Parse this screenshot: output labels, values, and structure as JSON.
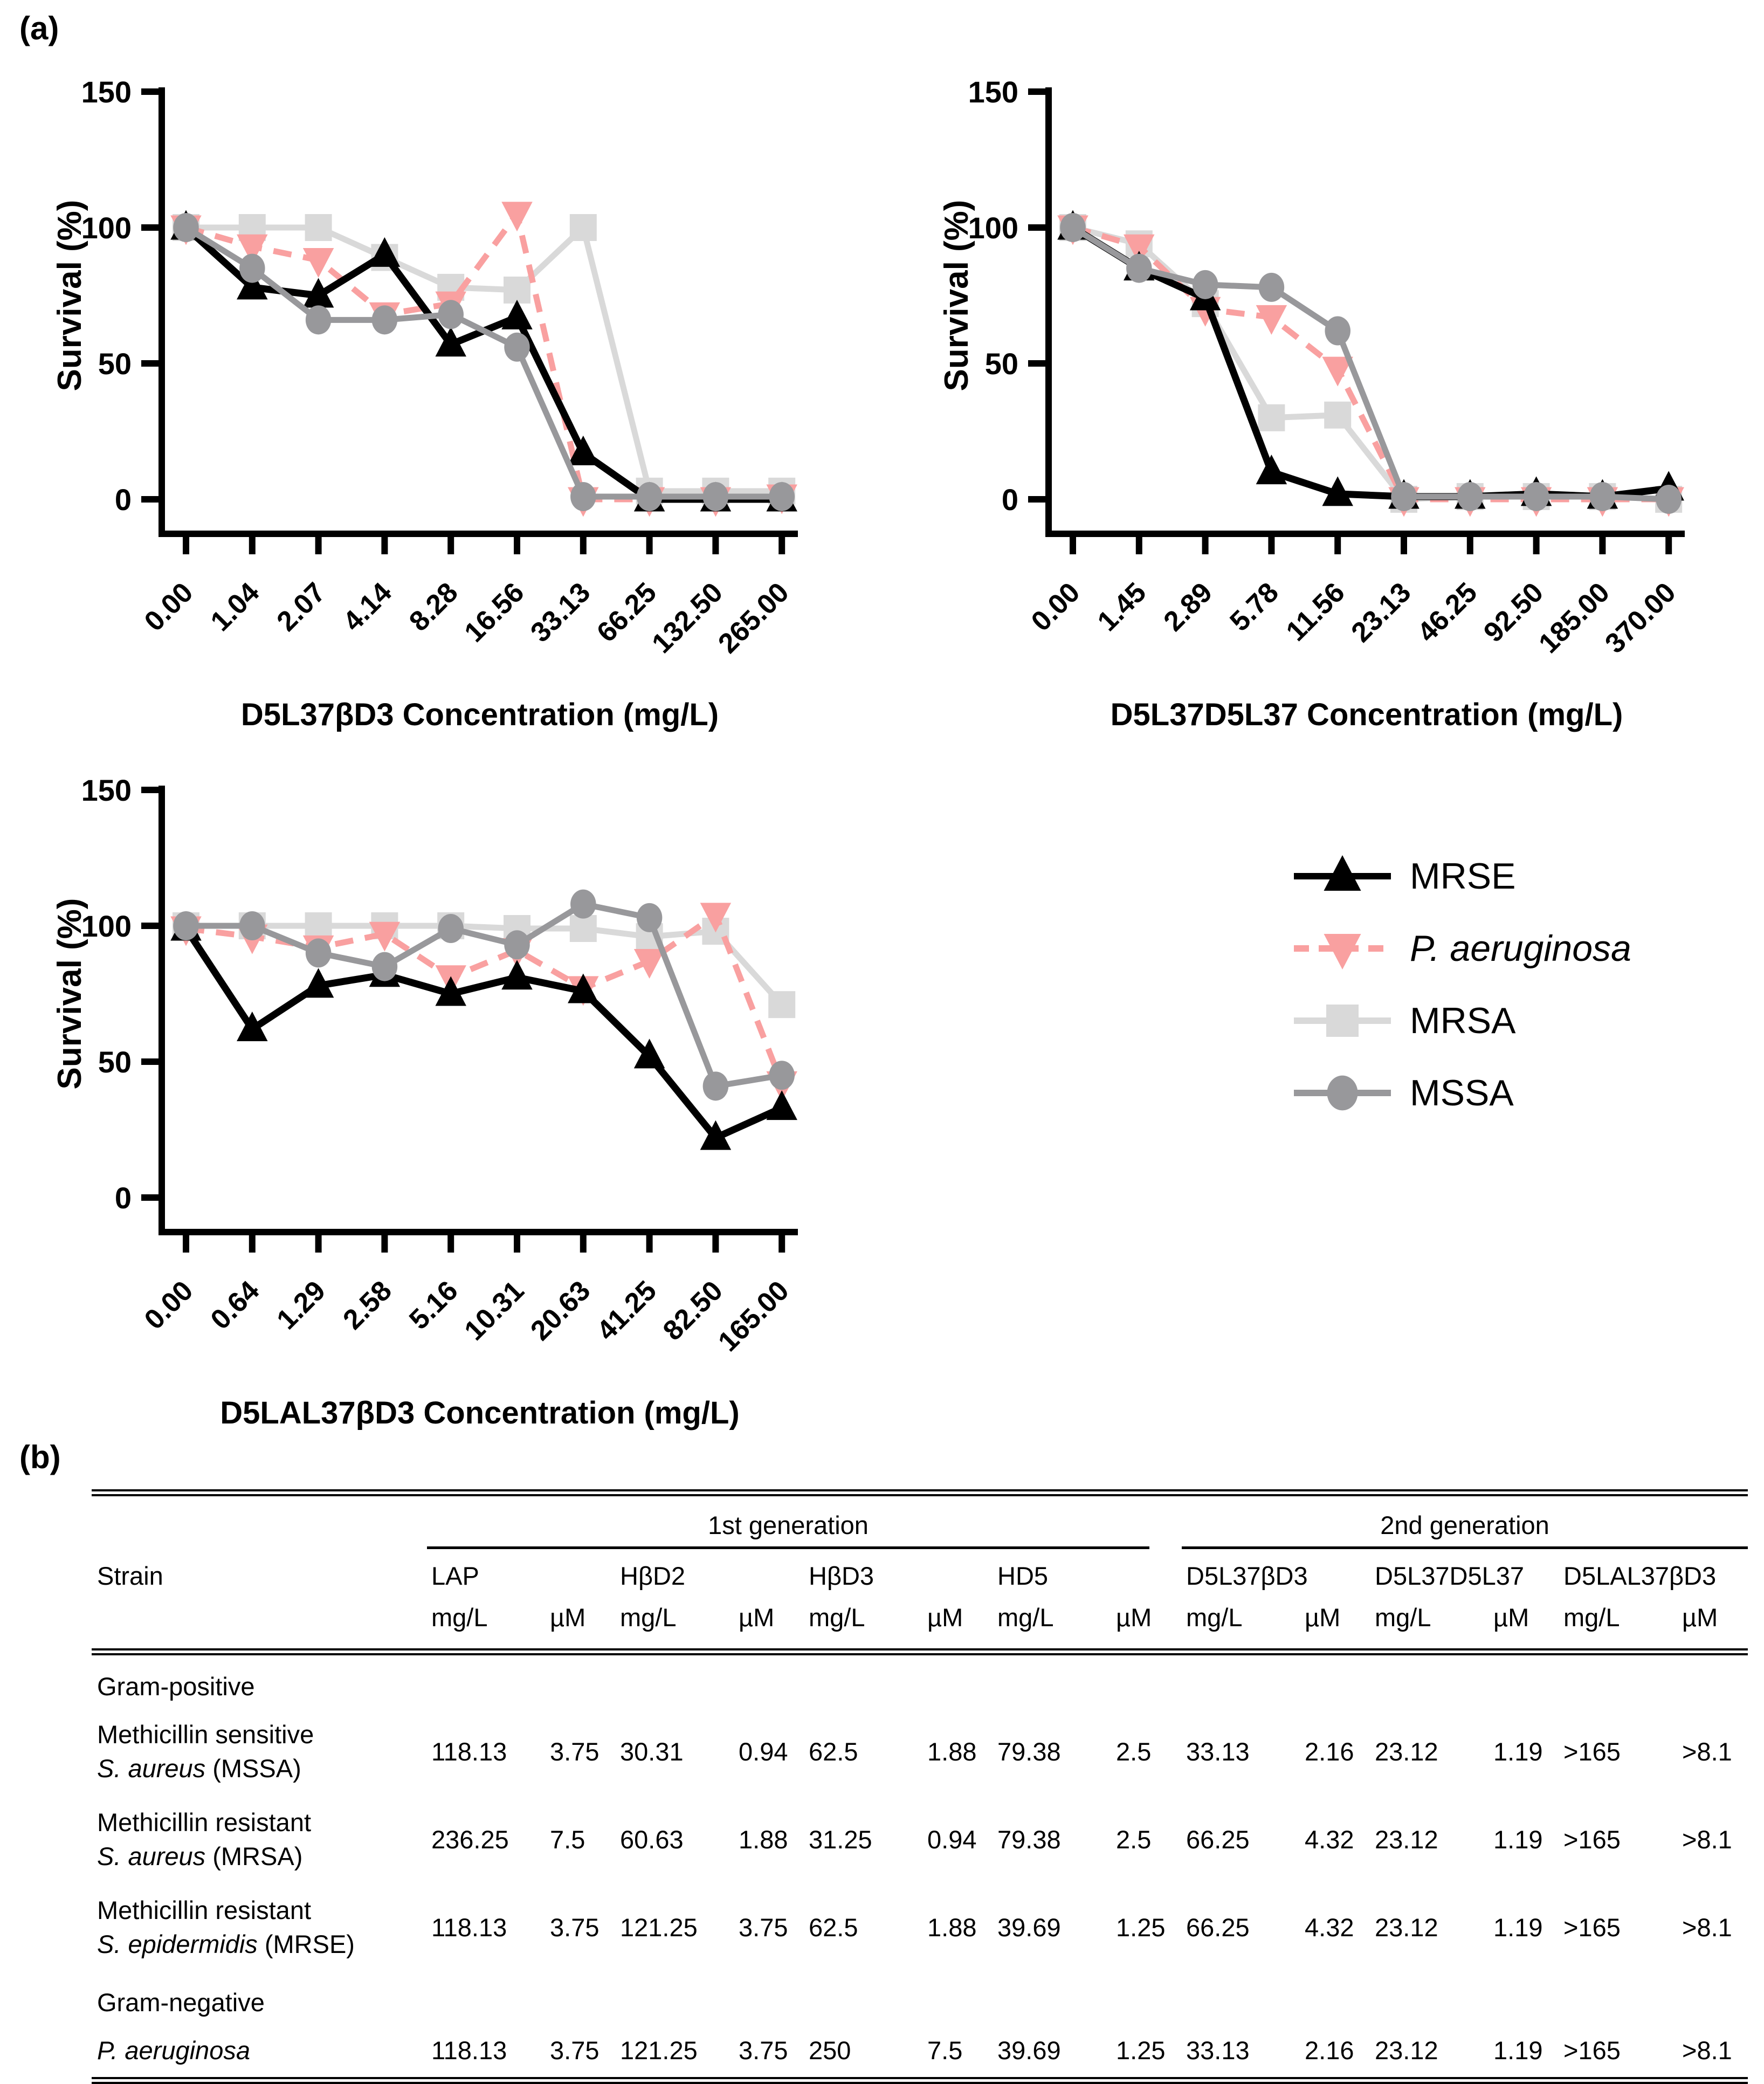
{
  "panel_a_label": "(a)",
  "panel_b_label": "(b)",
  "series_styles": {
    "MRSE": {
      "color": "#000000",
      "marker": "triangle-up",
      "dashed": false
    },
    "P. aeruginosa": {
      "color": "#F9A0A0",
      "marker": "triangle-down",
      "dashed": true
    },
    "MRSA": {
      "color": "#D9D9D9",
      "marker": "square",
      "dashed": false
    },
    "MSSA": {
      "color": "#98989B",
      "marker": "circle",
      "dashed": false
    }
  },
  "legend": {
    "position": "middle-right",
    "items": [
      {
        "label": "MRSE",
        "style": "MRSE",
        "italic": false
      },
      {
        "label": "P. aeruginosa",
        "style": "P. aeruginosa",
        "italic": true
      },
      {
        "label": "MRSA",
        "style": "MRSA",
        "italic": false
      },
      {
        "label": "MSSA",
        "style": "MSSA",
        "italic": false
      }
    ]
  },
  "chart_data": [
    {
      "type": "line",
      "xlabel": "D5L37βD3 Concentration (mg/L)",
      "ylabel": "Survival (%)",
      "yticks": [
        0,
        50,
        100,
        150
      ],
      "ylim": [
        0,
        150
      ],
      "grid": false,
      "categories": [
        "0.00",
        "1.04",
        "2.07",
        "4.14",
        "8.28",
        "16.56",
        "33.13",
        "66.25",
        "132.50",
        "265.00"
      ],
      "series": [
        {
          "name": "MRSE",
          "values": [
            100,
            78,
            75,
            90,
            57,
            67,
            17,
            0,
            0,
            0
          ]
        },
        {
          "name": "P. aeruginosa",
          "values": [
            100,
            93,
            88,
            68,
            72,
            105,
            0,
            0,
            0,
            1
          ]
        },
        {
          "name": "MRSA",
          "values": [
            100,
            100,
            100,
            89,
            78,
            77,
            100,
            3,
            3,
            3
          ]
        },
        {
          "name": "MSSA",
          "values": [
            100,
            85,
            66,
            66,
            68,
            56,
            1,
            1,
            1,
            1
          ]
        }
      ]
    },
    {
      "type": "line",
      "xlabel": "D5L37D5L37 Concentration (mg/L)",
      "ylabel": "Survival (%)",
      "yticks": [
        0,
        50,
        100,
        150
      ],
      "ylim": [
        0,
        150
      ],
      "grid": false,
      "categories": [
        "0.00",
        "1.45",
        "2.89",
        "5.78",
        "11.56",
        "23.13",
        "46.25",
        "92.50",
        "185.00",
        "370.00"
      ],
      "series": [
        {
          "name": "MRSE",
          "values": [
            100,
            85,
            74,
            10,
            2,
            1,
            1,
            2,
            1,
            4
          ]
        },
        {
          "name": "P. aeruginosa",
          "values": [
            100,
            93,
            70,
            67,
            48,
            0,
            0,
            0,
            0,
            0
          ]
        },
        {
          "name": "MRSA",
          "values": [
            100,
            94,
            72,
            30,
            31,
            0,
            1,
            1,
            1,
            0
          ]
        },
        {
          "name": "MSSA",
          "values": [
            100,
            85,
            79,
            78,
            62,
            1,
            1,
            1,
            1,
            0
          ]
        }
      ]
    },
    {
      "type": "line",
      "xlabel": "D5LAL37βD3 Concentration (mg/L)",
      "ylabel": "Survival (%)",
      "yticks": [
        0,
        50,
        100,
        150
      ],
      "ylim": [
        0,
        150
      ],
      "grid": false,
      "categories": [
        "0.00",
        "0.64",
        "1.29",
        "2.58",
        "5.16",
        "10.31",
        "20.63",
        "41.25",
        "82.50",
        "165.00"
      ],
      "series": [
        {
          "name": "MRSE",
          "values": [
            99,
            62,
            78,
            82,
            75,
            81,
            76,
            52,
            22,
            33
          ]
        },
        {
          "name": "P. aeruginosa",
          "values": [
            99,
            96,
            92,
            97,
            81,
            91,
            77,
            87,
            104,
            42
          ]
        },
        {
          "name": "MRSA",
          "values": [
            100,
            100,
            100,
            100,
            100,
            99,
            99,
            96,
            98,
            71
          ]
        },
        {
          "name": "MSSA",
          "values": [
            100,
            100,
            90,
            85,
            99,
            93,
            108,
            103,
            41,
            45
          ]
        }
      ]
    }
  ],
  "table": {
    "strain_header": "Strain",
    "group_headers": [
      {
        "label": "1st generation",
        "span": 8
      },
      {
        "label": "2nd generation",
        "span": 6
      }
    ],
    "peptides": [
      "LAP",
      "HβD2",
      "HβD3",
      "HD5",
      "D5L37βD3",
      "D5L37D5L37",
      "D5LAL37βD3"
    ],
    "units": [
      "mg/L",
      "µM"
    ],
    "sections": [
      {
        "header": "Gram-positive",
        "rows": [
          {
            "line1": "Methicillin sensitive",
            "italic": "S. aureus",
            "rest": " (MSSA)",
            "values": [
              "118.13",
              "3.75",
              "30.31",
              "0.94",
              "62.5",
              "1.88",
              "79.38",
              "2.5",
              "33.13",
              "2.16",
              "23.12",
              "1.19",
              ">165",
              ">8.1"
            ]
          },
          {
            "line1": "Methicillin resistant",
            "italic": "S. aureus",
            "rest": " (MRSA)",
            "values": [
              "236.25",
              "7.5",
              "60.63",
              "1.88",
              "31.25",
              "0.94",
              "79.38",
              "2.5",
              "66.25",
              "4.32",
              "23.12",
              "1.19",
              ">165",
              ">8.1"
            ]
          },
          {
            "line1": "Methicillin resistant",
            "italic": "S. epidermidis",
            "rest": " (MRSE)",
            "values": [
              "118.13",
              "3.75",
              "121.25",
              "3.75",
              "62.5",
              "1.88",
              "39.69",
              "1.25",
              "66.25",
              "4.32",
              "23.12",
              "1.19",
              ">165",
              ">8.1"
            ]
          }
        ]
      },
      {
        "header": "Gram-negative",
        "rows": [
          {
            "line1": "",
            "italic": "P. aeruginosa",
            "rest": "",
            "values": [
              "118.13",
              "3.75",
              "121.25",
              "3.75",
              "250",
              "7.5",
              "39.69",
              "1.25",
              "33.13",
              "2.16",
              "23.12",
              "1.19",
              ">165",
              ">8.1"
            ]
          }
        ]
      }
    ]
  }
}
